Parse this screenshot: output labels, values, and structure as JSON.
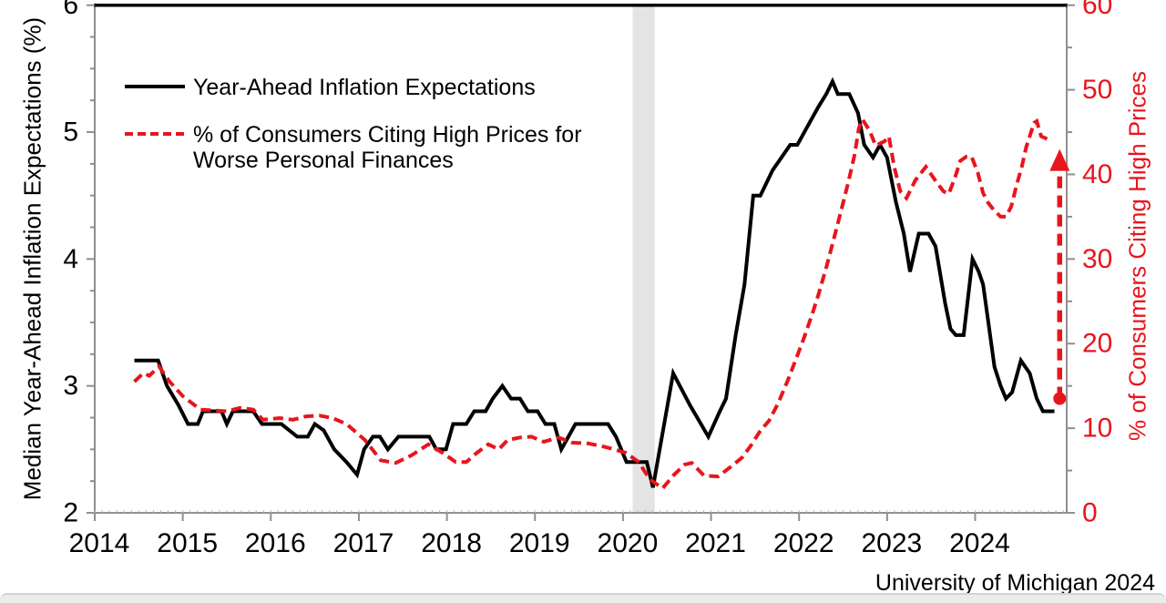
{
  "source_note": "University of Michigan 2024",
  "colors": {
    "black_series": "#000000",
    "red_series": "#e8151d",
    "axis_line": "#8f8f8f",
    "tick_label": "#000000",
    "right_tick_label": "#e8151d",
    "recession_band": "#e4e4e4",
    "top_border": "#000000",
    "bottom_strip": "#ececec"
  },
  "legend": {
    "items": [
      {
        "label": "Year-Ahead Inflation Expectations",
        "style": "solid-black"
      },
      {
        "label_line1": "% of Consumers Citing High Prices for",
        "label_line2": "Worse Personal Finances",
        "style": "dashed-red"
      }
    ]
  },
  "left_axis": {
    "title": "Median Year-Ahead Inflation Expectations (%)",
    "range": [
      2,
      6
    ],
    "ticks": [
      2,
      3,
      4,
      5,
      6
    ],
    "minor_step": 0.25
  },
  "right_axis": {
    "title": "% of Consumers Citing High Prices",
    "range": [
      0,
      60
    ],
    "ticks": [
      0,
      10,
      20,
      30,
      40,
      50,
      60
    ],
    "minor_step": 5
  },
  "x_axis": {
    "range": [
      2014,
      2025.04
    ],
    "ticks": [
      2014,
      2015,
      2016,
      2017,
      2018,
      2019,
      2020,
      2021,
      2022,
      2023,
      2024
    ],
    "minor_step_months": 1
  },
  "chart_data": {
    "type": "line",
    "title": "",
    "xlabel": "",
    "grid": false,
    "legend_position": "top-left-inside",
    "recession_band": {
      "x_start": 2020.11,
      "x_end": 2020.36
    },
    "annotation_arrow": {
      "axis": "right",
      "x": 2024.96,
      "from": 13.5,
      "to": 43.0,
      "style": "dashed-red",
      "dot_at_base": true
    },
    "series": [
      {
        "name": "Year-Ahead Inflation Expectations",
        "axis": "left",
        "style": "solid",
        "color": "#000000",
        "points": [
          [
            2014.45,
            3.2
          ],
          [
            2014.72,
            3.2
          ],
          [
            2014.82,
            3.0
          ],
          [
            2014.95,
            2.85
          ],
          [
            2015.06,
            2.7
          ],
          [
            2015.17,
            2.7
          ],
          [
            2015.23,
            2.8
          ],
          [
            2015.44,
            2.8
          ],
          [
            2015.5,
            2.7
          ],
          [
            2015.57,
            2.8
          ],
          [
            2015.8,
            2.8
          ],
          [
            2015.9,
            2.7
          ],
          [
            2016.12,
            2.7
          ],
          [
            2016.3,
            2.6
          ],
          [
            2016.42,
            2.6
          ],
          [
            2016.5,
            2.7
          ],
          [
            2016.6,
            2.65
          ],
          [
            2016.72,
            2.5
          ],
          [
            2016.86,
            2.4
          ],
          [
            2016.98,
            2.3
          ],
          [
            2017.06,
            2.5
          ],
          [
            2017.16,
            2.6
          ],
          [
            2017.24,
            2.6
          ],
          [
            2017.33,
            2.5
          ],
          [
            2017.45,
            2.6
          ],
          [
            2017.8,
            2.6
          ],
          [
            2017.88,
            2.5
          ],
          [
            2017.99,
            2.5
          ],
          [
            2018.07,
            2.7
          ],
          [
            2018.22,
            2.7
          ],
          [
            2018.31,
            2.8
          ],
          [
            2018.44,
            2.8
          ],
          [
            2018.52,
            2.9
          ],
          [
            2018.63,
            3.0
          ],
          [
            2018.73,
            2.9
          ],
          [
            2018.83,
            2.9
          ],
          [
            2018.92,
            2.8
          ],
          [
            2019.03,
            2.8
          ],
          [
            2019.12,
            2.7
          ],
          [
            2019.22,
            2.7
          ],
          [
            2019.3,
            2.5
          ],
          [
            2019.38,
            2.6
          ],
          [
            2019.46,
            2.7
          ],
          [
            2019.83,
            2.7
          ],
          [
            2019.92,
            2.6
          ],
          [
            2020.04,
            2.4
          ],
          [
            2020.27,
            2.4
          ],
          [
            2020.34,
            2.2
          ],
          [
            2020.57,
            3.1
          ],
          [
            2020.76,
            2.85
          ],
          [
            2020.97,
            2.6
          ],
          [
            2021.1,
            2.8
          ],
          [
            2021.17,
            2.9
          ],
          [
            2021.28,
            3.4
          ],
          [
            2021.38,
            3.8
          ],
          [
            2021.48,
            4.5
          ],
          [
            2021.56,
            4.5
          ],
          [
            2021.7,
            4.7
          ],
          [
            2021.8,
            4.8
          ],
          [
            2021.9,
            4.9
          ],
          [
            2021.98,
            4.9
          ],
          [
            2022.14,
            5.1
          ],
          [
            2022.22,
            5.2
          ],
          [
            2022.31,
            5.3
          ],
          [
            2022.38,
            5.4
          ],
          [
            2022.44,
            5.3
          ],
          [
            2022.57,
            5.3
          ],
          [
            2022.67,
            5.15
          ],
          [
            2022.74,
            4.9
          ],
          [
            2022.84,
            4.8
          ],
          [
            2022.92,
            4.9
          ],
          [
            2023.0,
            4.8
          ],
          [
            2023.1,
            4.45
          ],
          [
            2023.19,
            4.2
          ],
          [
            2023.26,
            3.9
          ],
          [
            2023.36,
            4.2
          ],
          [
            2023.47,
            4.2
          ],
          [
            2023.55,
            4.1
          ],
          [
            2023.66,
            3.65
          ],
          [
            2023.72,
            3.45
          ],
          [
            2023.78,
            3.4
          ],
          [
            2023.87,
            3.4
          ],
          [
            2023.97,
            4.0
          ],
          [
            2024.04,
            3.9
          ],
          [
            2024.09,
            3.8
          ],
          [
            2024.15,
            3.5
          ],
          [
            2024.22,
            3.15
          ],
          [
            2024.29,
            3.0
          ],
          [
            2024.35,
            2.9
          ],
          [
            2024.42,
            2.95
          ],
          [
            2024.52,
            3.2
          ],
          [
            2024.62,
            3.1
          ],
          [
            2024.7,
            2.9
          ],
          [
            2024.77,
            2.8
          ],
          [
            2024.9,
            2.8
          ]
        ]
      },
      {
        "name": "% of Consumers Citing High Prices for Worse Personal Finances",
        "axis": "right",
        "style": "dashed",
        "color": "#e8151d",
        "points": [
          [
            2014.45,
            15.5
          ],
          [
            2014.55,
            16.5
          ],
          [
            2014.62,
            16.2
          ],
          [
            2014.73,
            17.3
          ],
          [
            2014.85,
            15.5
          ],
          [
            2015.0,
            13.8
          ],
          [
            2015.2,
            12.2
          ],
          [
            2015.5,
            12.0
          ],
          [
            2015.65,
            12.4
          ],
          [
            2015.8,
            12.2
          ],
          [
            2015.91,
            11.0
          ],
          [
            2016.1,
            11.2
          ],
          [
            2016.25,
            11.0
          ],
          [
            2016.4,
            11.4
          ],
          [
            2016.55,
            11.5
          ],
          [
            2016.7,
            11.2
          ],
          [
            2016.86,
            10.5
          ],
          [
            2017.07,
            8.6
          ],
          [
            2017.25,
            6.2
          ],
          [
            2017.42,
            5.9
          ],
          [
            2017.6,
            6.8
          ],
          [
            2017.79,
            8.1
          ],
          [
            2017.95,
            7.1
          ],
          [
            2018.1,
            6.0
          ],
          [
            2018.22,
            6.0
          ],
          [
            2018.34,
            7.1
          ],
          [
            2018.47,
            8.1
          ],
          [
            2018.59,
            7.5
          ],
          [
            2018.69,
            8.6
          ],
          [
            2018.83,
            8.9
          ],
          [
            2018.96,
            9.0
          ],
          [
            2019.1,
            8.4
          ],
          [
            2019.27,
            8.9
          ],
          [
            2019.42,
            8.3
          ],
          [
            2019.6,
            8.2
          ],
          [
            2019.75,
            7.9
          ],
          [
            2019.9,
            7.5
          ],
          [
            2020.03,
            7.1
          ],
          [
            2020.18,
            6.0
          ],
          [
            2020.3,
            4.0
          ],
          [
            2020.45,
            2.9
          ],
          [
            2020.58,
            4.5
          ],
          [
            2020.7,
            5.7
          ],
          [
            2020.78,
            5.9
          ],
          [
            2020.92,
            4.4
          ],
          [
            2021.08,
            4.3
          ],
          [
            2021.22,
            5.4
          ],
          [
            2021.35,
            6.5
          ],
          [
            2021.45,
            7.9
          ],
          [
            2021.56,
            9.7
          ],
          [
            2021.66,
            10.9
          ],
          [
            2021.76,
            12.9
          ],
          [
            2021.87,
            15.6
          ],
          [
            2021.97,
            18.3
          ],
          [
            2022.06,
            20.8
          ],
          [
            2022.15,
            23.5
          ],
          [
            2022.22,
            25.8
          ],
          [
            2022.32,
            29.4
          ],
          [
            2022.42,
            33.4
          ],
          [
            2022.49,
            36.2
          ],
          [
            2022.56,
            39.1
          ],
          [
            2022.63,
            42.3
          ],
          [
            2022.68,
            45.5
          ],
          [
            2022.72,
            46.5
          ],
          [
            2022.8,
            45.2
          ],
          [
            2022.87,
            43.4
          ],
          [
            2022.97,
            43.9
          ],
          [
            2023.02,
            44.5
          ],
          [
            2023.08,
            40.9
          ],
          [
            2023.15,
            38.0
          ],
          [
            2023.22,
            37.2
          ],
          [
            2023.32,
            39.3
          ],
          [
            2023.44,
            40.9
          ],
          [
            2023.56,
            39.1
          ],
          [
            2023.64,
            38.0
          ],
          [
            2023.7,
            37.7
          ],
          [
            2023.77,
            39.6
          ],
          [
            2023.83,
            41.6
          ],
          [
            2023.9,
            42.1
          ],
          [
            2023.96,
            42.1
          ],
          [
            2024.03,
            40.2
          ],
          [
            2024.09,
            37.8
          ],
          [
            2024.15,
            36.6
          ],
          [
            2024.22,
            35.7
          ],
          [
            2024.29,
            35.0
          ],
          [
            2024.35,
            35.0
          ],
          [
            2024.41,
            36.2
          ],
          [
            2024.47,
            38.7
          ],
          [
            2024.53,
            40.9
          ],
          [
            2024.58,
            43.2
          ],
          [
            2024.67,
            46.1
          ],
          [
            2024.7,
            46.3
          ],
          [
            2024.75,
            44.5
          ],
          [
            2024.82,
            44.2
          ],
          [
            2024.88,
            44.2
          ]
        ]
      }
    ]
  }
}
